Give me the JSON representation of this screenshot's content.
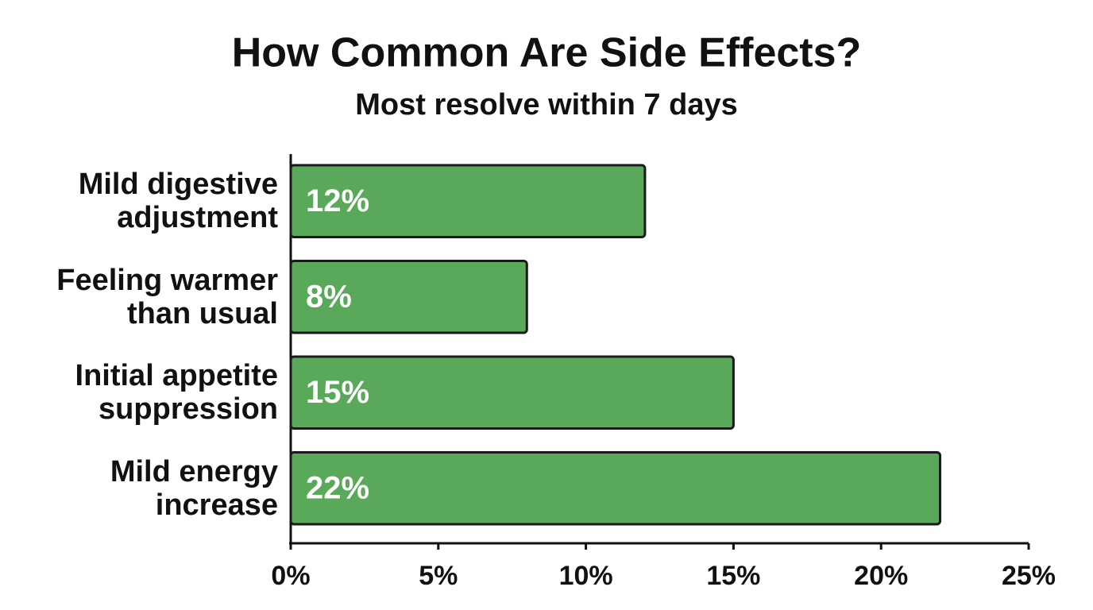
{
  "chart_data": {
    "type": "bar",
    "orientation": "horizontal",
    "title": "How Common Are Side Effects?",
    "subtitle": "Most resolve within 7 days",
    "categories": [
      "Mild digestive adjustment",
      "Feeling warmer than usual",
      "Initial appetite suppression",
      "Mild energy increase"
    ],
    "values": [
      12,
      8,
      15,
      22
    ],
    "value_labels": [
      "12%",
      "8%",
      "15%",
      "22%"
    ],
    "color": "#5aa85a",
    "xlim": [
      0,
      25
    ],
    "xticks": [
      {
        "value": 0,
        "label": "0%"
      },
      {
        "value": 5,
        "label": "5%"
      },
      {
        "value": 10,
        "label": "10%"
      },
      {
        "value": 15,
        "label": "15%"
      },
      {
        "value": 20,
        "label": "20%"
      },
      {
        "value": 25,
        "label": "25%"
      }
    ],
    "grid": false
  }
}
